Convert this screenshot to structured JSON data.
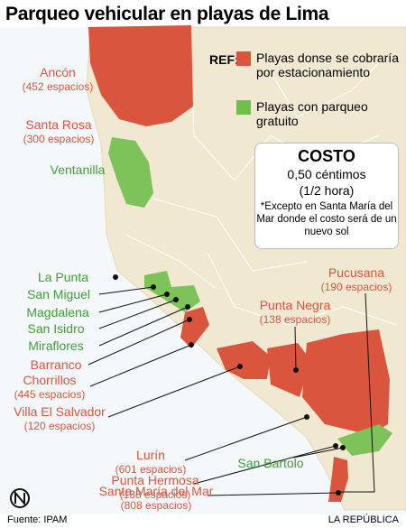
{
  "title": "Parqueo vehicular en playas de Lima",
  "legend": {
    "ref": "REF:",
    "items": [
      {
        "label": "Playas donse se cobraría por estacionamiento",
        "color": "#d9553e"
      },
      {
        "label": "Playas con parqueo gratuito",
        "color": "#6fbf4a"
      }
    ]
  },
  "cost": {
    "title": "COSTO",
    "price": "0,50 céntimos",
    "unit": "(1/2 hora)",
    "note": "*Excepto en Santa María del Mar donde el costo será de un nuevo sol"
  },
  "places": [
    {
      "name": "Ancón",
      "detail": "(452 espacios)",
      "color": "#d9553e"
    },
    {
      "name": "Santa Rosa",
      "detail": "(300 espacios)",
      "color": "#d9553e"
    },
    {
      "name": "Ventanilla",
      "color": "#3f9e33"
    },
    {
      "name": "La Punta",
      "color": "#3f9e33"
    },
    {
      "name": "San Miguel",
      "color": "#3f9e33"
    },
    {
      "name": "Magdalena",
      "color": "#3f9e33"
    },
    {
      "name": "San Isidro",
      "color": "#3f9e33"
    },
    {
      "name": "Miraflores",
      "color": "#3f9e33"
    },
    {
      "name": "Barranco",
      "color": "#d9553e"
    },
    {
      "name": "Chorrillos",
      "detail": "(445 espacios)",
      "color": "#d9553e"
    },
    {
      "name": "Villa El Salvador",
      "detail": "(120 espacios)",
      "color": "#d9553e"
    },
    {
      "name": "Lurín",
      "detail": "(601 espacios)",
      "color": "#d9553e"
    },
    {
      "name": "Punta Hermosa",
      "detail": "(138 espacios)",
      "color": "#d9553e"
    },
    {
      "name": "Santa María del Mar",
      "detail": "(808 espacios)",
      "color": "#d9553e"
    },
    {
      "name": "San Bartolo",
      "color": "#3f9e33"
    },
    {
      "name": "Punta Negra",
      "detail": "(138 espacios)",
      "color": "#d9553e"
    },
    {
      "name": "Pucusana",
      "detail": "(190 espacios)",
      "color": "#d9553e"
    }
  ],
  "footer": {
    "source": "Fuente: IPAM",
    "brand": "LA REPÚBLICA"
  }
}
